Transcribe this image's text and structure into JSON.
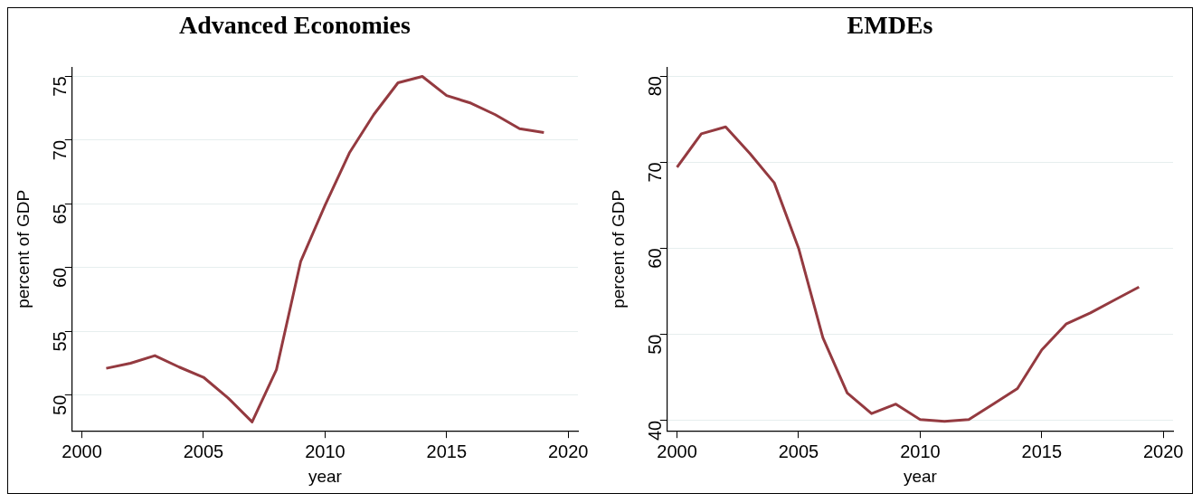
{
  "chart_data": [
    {
      "type": "line",
      "title": "Advanced Economies",
      "xlabel": "year",
      "ylabel": "percent of GDP",
      "x": [
        2001,
        2002,
        2003,
        2004,
        2005,
        2006,
        2007,
        2008,
        2009,
        2010,
        2011,
        2012,
        2013,
        2014,
        2015,
        2016,
        2017,
        2018,
        2019
      ],
      "series": [
        {
          "color": "#943a40",
          "values": [
            52.1,
            52.5,
            53.1,
            52.2,
            51.4,
            49.8,
            47.9,
            52.0,
            60.5,
            64.9,
            69.0,
            72.0,
            74.5,
            75.0,
            73.5,
            72.9,
            72.0,
            70.9,
            70.6
          ]
        }
      ],
      "xlim": [
        1999.6,
        2020.4
      ],
      "ylim": [
        47.2,
        75.7
      ],
      "xticks": [
        2000,
        2005,
        2010,
        2015,
        2020
      ],
      "yticks": [
        50,
        55,
        60,
        65,
        70,
        75
      ],
      "grid": "y",
      "marker": "none"
    },
    {
      "type": "line",
      "title": "EMDEs",
      "xlabel": "year",
      "ylabel": "percent of GDP",
      "x": [
        2000,
        2001,
        2002,
        2003,
        2004,
        2005,
        2006,
        2007,
        2008,
        2009,
        2010,
        2011,
        2012,
        2013,
        2014,
        2015,
        2016,
        2017,
        2018,
        2019
      ],
      "series": [
        {
          "color": "#943a40",
          "values": [
            69.4,
            73.3,
            74.1,
            71.0,
            67.6,
            60.0,
            49.6,
            43.2,
            40.8,
            41.9,
            40.1,
            39.9,
            40.1,
            41.9,
            43.7,
            48.2,
            51.2,
            52.5,
            54.0,
            55.5
          ]
        }
      ],
      "xlim": [
        1999.6,
        2020.4
      ],
      "ylim": [
        38.8,
        81
      ],
      "xticks": [
        2000,
        2005,
        2010,
        2015,
        2020
      ],
      "yticks": [
        40,
        50,
        60,
        70,
        80
      ],
      "grid": "y",
      "marker": "none"
    }
  ]
}
